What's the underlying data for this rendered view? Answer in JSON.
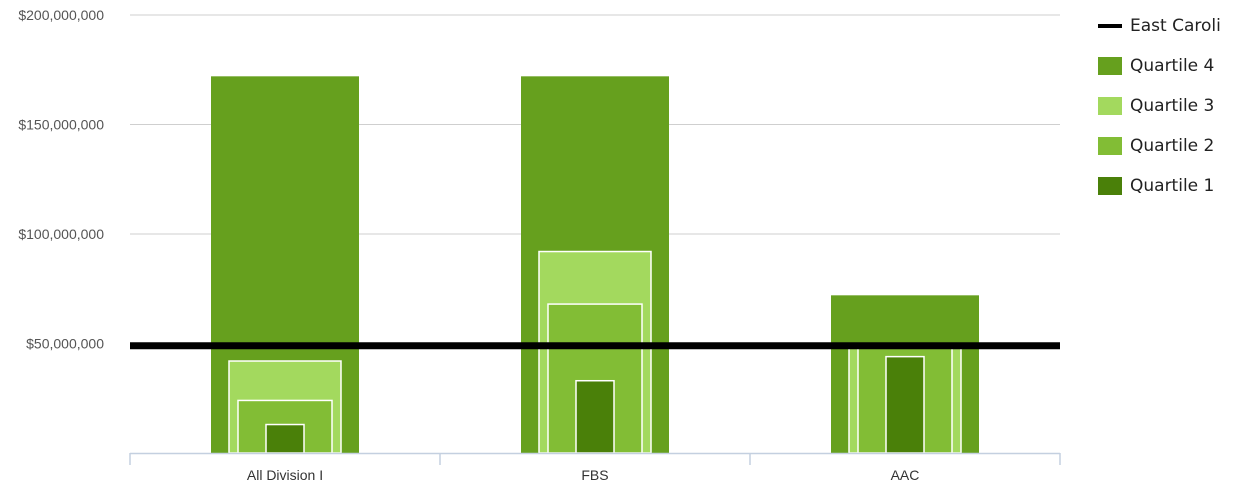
{
  "chart_data": {
    "type": "bar",
    "categories": [
      "All Division I",
      "FBS",
      "AAC"
    ],
    "series": [
      {
        "name": "Quartile 4",
        "values": [
          172000000,
          172000000,
          72000000
        ],
        "color": "#66a01e"
      },
      {
        "name": "Quartile 3",
        "values": [
          42000000,
          92000000,
          48000000
        ],
        "color": "#a3d95e"
      },
      {
        "name": "Quartile 2",
        "values": [
          24000000,
          68000000,
          48000000
        ],
        "color": "#82bd35"
      },
      {
        "name": "Quartile 1",
        "values": [
          13000000,
          33000000,
          44000000
        ],
        "color": "#4a8009"
      }
    ],
    "reference_line": {
      "name": "East Caroli",
      "value": 49000000,
      "color": "#000000"
    },
    "yticks": [
      "$200,000,000",
      "$150,000,000",
      "$100,000,000",
      "$50,000,000"
    ],
    "ytick_values": [
      200000000,
      150000000,
      100000000,
      50000000
    ],
    "ylim": [
      0,
      200000000
    ],
    "grid": true,
    "legend_position": "right",
    "title": "",
    "xlabel": "",
    "ylabel": ""
  }
}
